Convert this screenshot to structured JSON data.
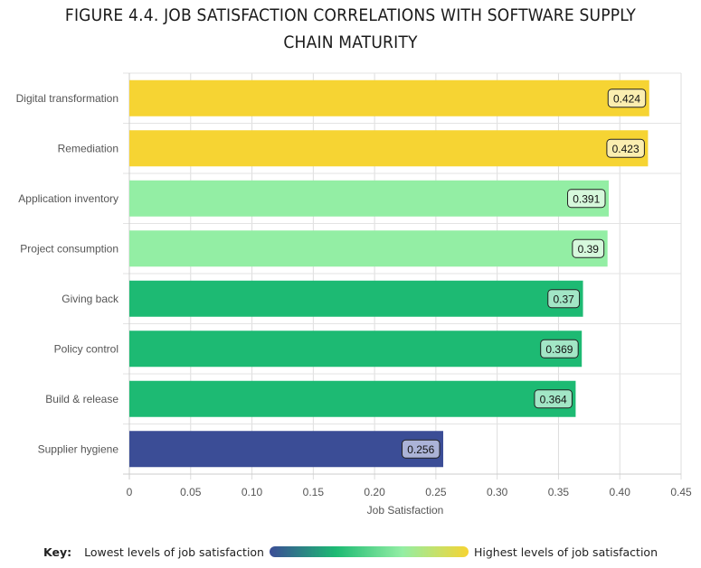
{
  "chart_data": {
    "type": "bar",
    "orientation": "horizontal",
    "title_lines": [
      "FIGURE 4.4. JOB SATISFACTION CORRELATIONS WITH SOFTWARE SUPPLY",
      "CHAIN MATURITY"
    ],
    "categories": [
      "Digital transformation",
      "Remediation",
      "Application inventory",
      "Project consumption",
      "Giving back",
      "Policy control",
      "Build & release",
      "Supplier hygiene"
    ],
    "values": [
      0.424,
      0.423,
      0.391,
      0.39,
      0.37,
      0.369,
      0.364,
      0.256
    ],
    "value_labels": [
      "0.424",
      "0.423",
      "0.391",
      "0.39",
      "0.37",
      "0.369",
      "0.364",
      "0.256"
    ],
    "bar_colors": [
      "#f6d433",
      "#f6d433",
      "#93eea4",
      "#93eea4",
      "#1dba73",
      "#1dba73",
      "#1dba73",
      "#3b4d96"
    ],
    "label_box_colors": [
      "#fbeeb0",
      "#fbeeb0",
      "#d6f8dc",
      "#d6f8dc",
      "#a2e6c6",
      "#a2e6c6",
      "#a2e6c6",
      "#abb3d7"
    ],
    "xlabel": "Job Satisfaction",
    "ylabel": "",
    "xlim": [
      0,
      0.45
    ],
    "xticks": [
      0,
      0.05,
      0.1,
      0.15,
      0.2,
      0.25,
      0.3,
      0.35,
      0.4,
      0.45
    ],
    "xtick_labels": [
      "0",
      "0.05",
      "0.10",
      "0.15",
      "0.20",
      "0.25",
      "0.30",
      "0.35",
      "0.40",
      "0.45"
    ],
    "grid": true,
    "legend": {
      "title": "Key:",
      "low_label": "Lowest levels of job satisfaction",
      "high_label": "Highest levels of job satisfaction",
      "gradient_colors": [
        "#3b4d96",
        "#1dba73",
        "#93eea4",
        "#f6d433"
      ],
      "placement": "bottom"
    }
  }
}
